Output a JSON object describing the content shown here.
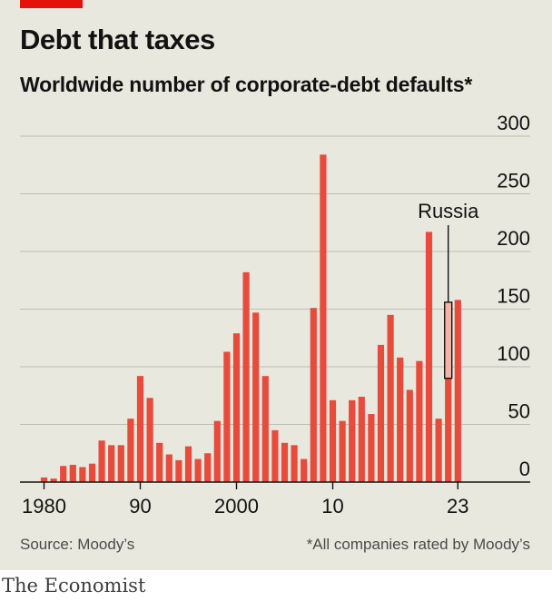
{
  "header": {
    "title": "Debt that taxes",
    "subtitle": "Worldwide number of corporate-debt defaults*"
  },
  "footer": {
    "source": "Source: Moody’s",
    "footnote": "*All companies rated by Moody’s",
    "brand": "The Economist"
  },
  "colors": {
    "bar": "#e64b3c",
    "highlight_fill": "#f3b3a6",
    "accent_tag": "#e3120b",
    "background": "#e9e8df",
    "grid": "#bdbdb4"
  },
  "chart_data": {
    "type": "bar",
    "x": [
      1980,
      1981,
      1982,
      1983,
      1984,
      1985,
      1986,
      1987,
      1988,
      1989,
      1990,
      1991,
      1992,
      1993,
      1994,
      1995,
      1996,
      1997,
      1998,
      1999,
      2000,
      2001,
      2002,
      2003,
      2004,
      2005,
      2006,
      2007,
      2008,
      2009,
      2010,
      2011,
      2012,
      2013,
      2014,
      2015,
      2016,
      2017,
      2018,
      2019,
      2020,
      2021,
      2022,
      2023
    ],
    "values": [
      4,
      3,
      14,
      15,
      13,
      16,
      36,
      32,
      32,
      55,
      92,
      73,
      34,
      24,
      19,
      31,
      20,
      25,
      53,
      113,
      129,
      182,
      147,
      92,
      45,
      34,
      32,
      20,
      151,
      284,
      71,
      53,
      71,
      74,
      59,
      119,
      145,
      108,
      80,
      105,
      217,
      55,
      156,
      158
    ],
    "x_tick_labels": [
      {
        "x": 1980,
        "label": "1980"
      },
      {
        "x": 1990,
        "label": "90"
      },
      {
        "x": 2000,
        "label": "2000"
      },
      {
        "x": 2010,
        "label": "10"
      },
      {
        "x": 2023,
        "label": "23"
      }
    ],
    "y_ticks": [
      0,
      50,
      100,
      150,
      200,
      250,
      300
    ],
    "ylim": [
      0,
      300
    ],
    "y_axis_side": "right",
    "grid": true,
    "annotations": [
      {
        "label": "Russia",
        "x": 2022,
        "range": [
          90,
          156
        ]
      }
    ]
  }
}
